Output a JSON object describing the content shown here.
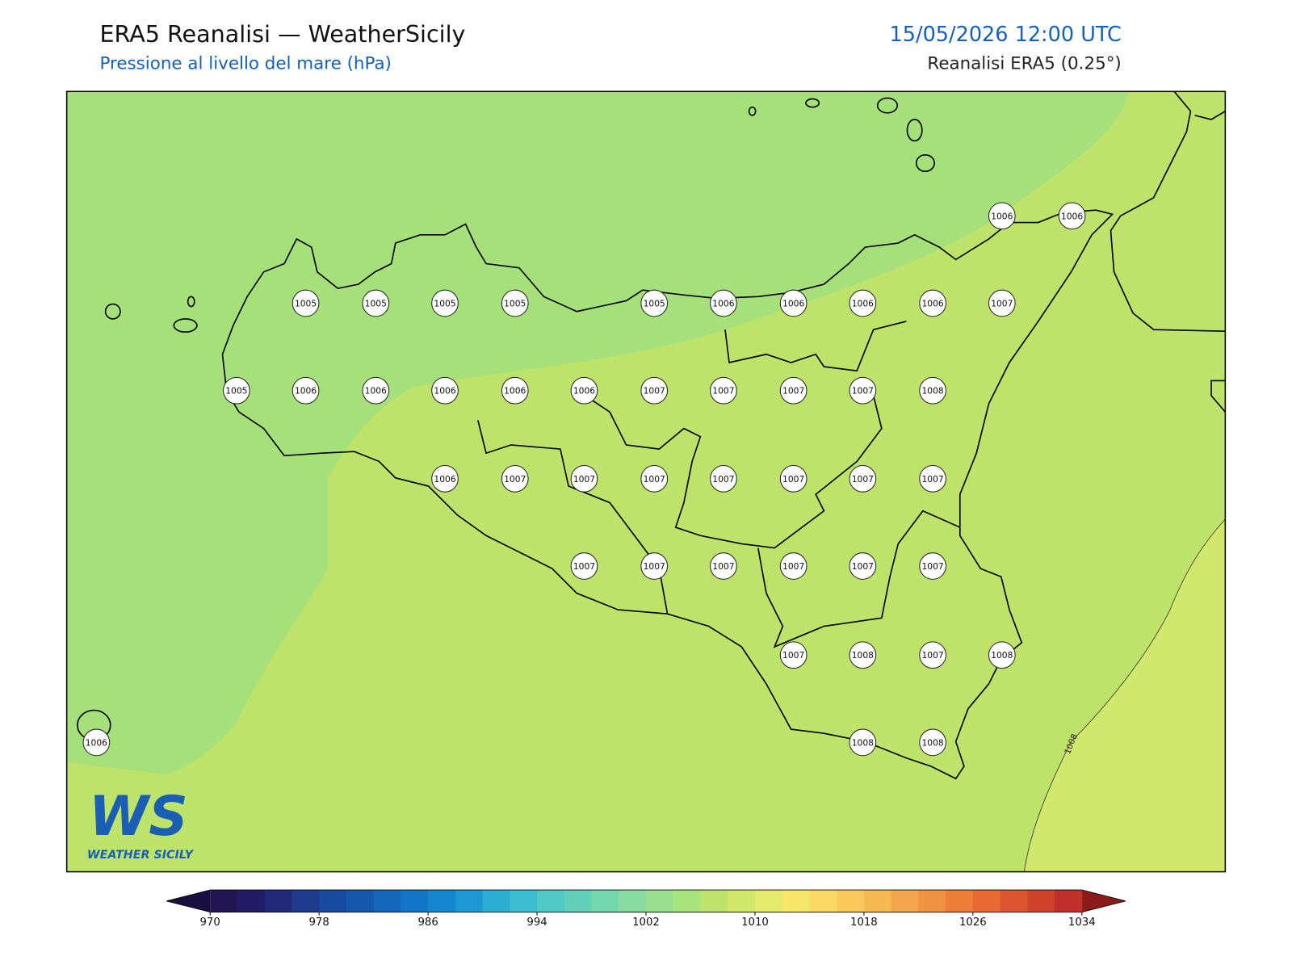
{
  "header": {
    "title": "ERA5 Reanalisi — WeatherSicily",
    "subtitle": "Pressione al livello del mare (hPa)",
    "datetime": "15/05/2026 12:00 UTC",
    "source": "Reanalisi ERA5 (0.25°)"
  },
  "stations": [
    1005,
    1005,
    1005,
    1005,
    1005,
    1006,
    1006,
    1006,
    1006,
    1007,
    1006,
    1006,
    1005,
    1006,
    1006,
    1006,
    1006,
    1006,
    1007,
    1007,
    1007,
    1007,
    1008,
    1006,
    1007,
    1007,
    1007,
    1007,
    1007,
    1007,
    1007,
    1007,
    1007,
    1007,
    1007,
    1007,
    1007,
    1007,
    1008,
    1007,
    1008,
    1006,
    1008,
    1008
  ],
  "contour_label": "1008",
  "colorbar": {
    "range": [
      970,
      1034
    ],
    "ticks": [
      970,
      978,
      986,
      994,
      1002,
      1010,
      1018,
      1026,
      1034
    ],
    "colors": [
      "#231552",
      "#251a66",
      "#1f2a7a",
      "#1d3a8c",
      "#1a4aa0",
      "#1558b0",
      "#1466bd",
      "#1276c8",
      "#1486d0",
      "#1e98d4",
      "#2aaed6",
      "#3bbfd0",
      "#50c8c4",
      "#62d0b8",
      "#74d8ae",
      "#86dca0",
      "#98e08e",
      "#a9e37e",
      "#bde36a",
      "#d0e76a",
      "#e3ea6e",
      "#f5e66a",
      "#fbd863",
      "#f9c95c",
      "#f6b852",
      "#f3a649",
      "#f09340",
      "#ec7e38",
      "#e66a32",
      "#dc552e",
      "#d0422b",
      "#c22e29"
    ],
    "under_color": "#1a0f40",
    "over_color": "#8b1a1a"
  },
  "logo": {
    "mark": "WS",
    "text": "WEATHER SICILY"
  }
}
